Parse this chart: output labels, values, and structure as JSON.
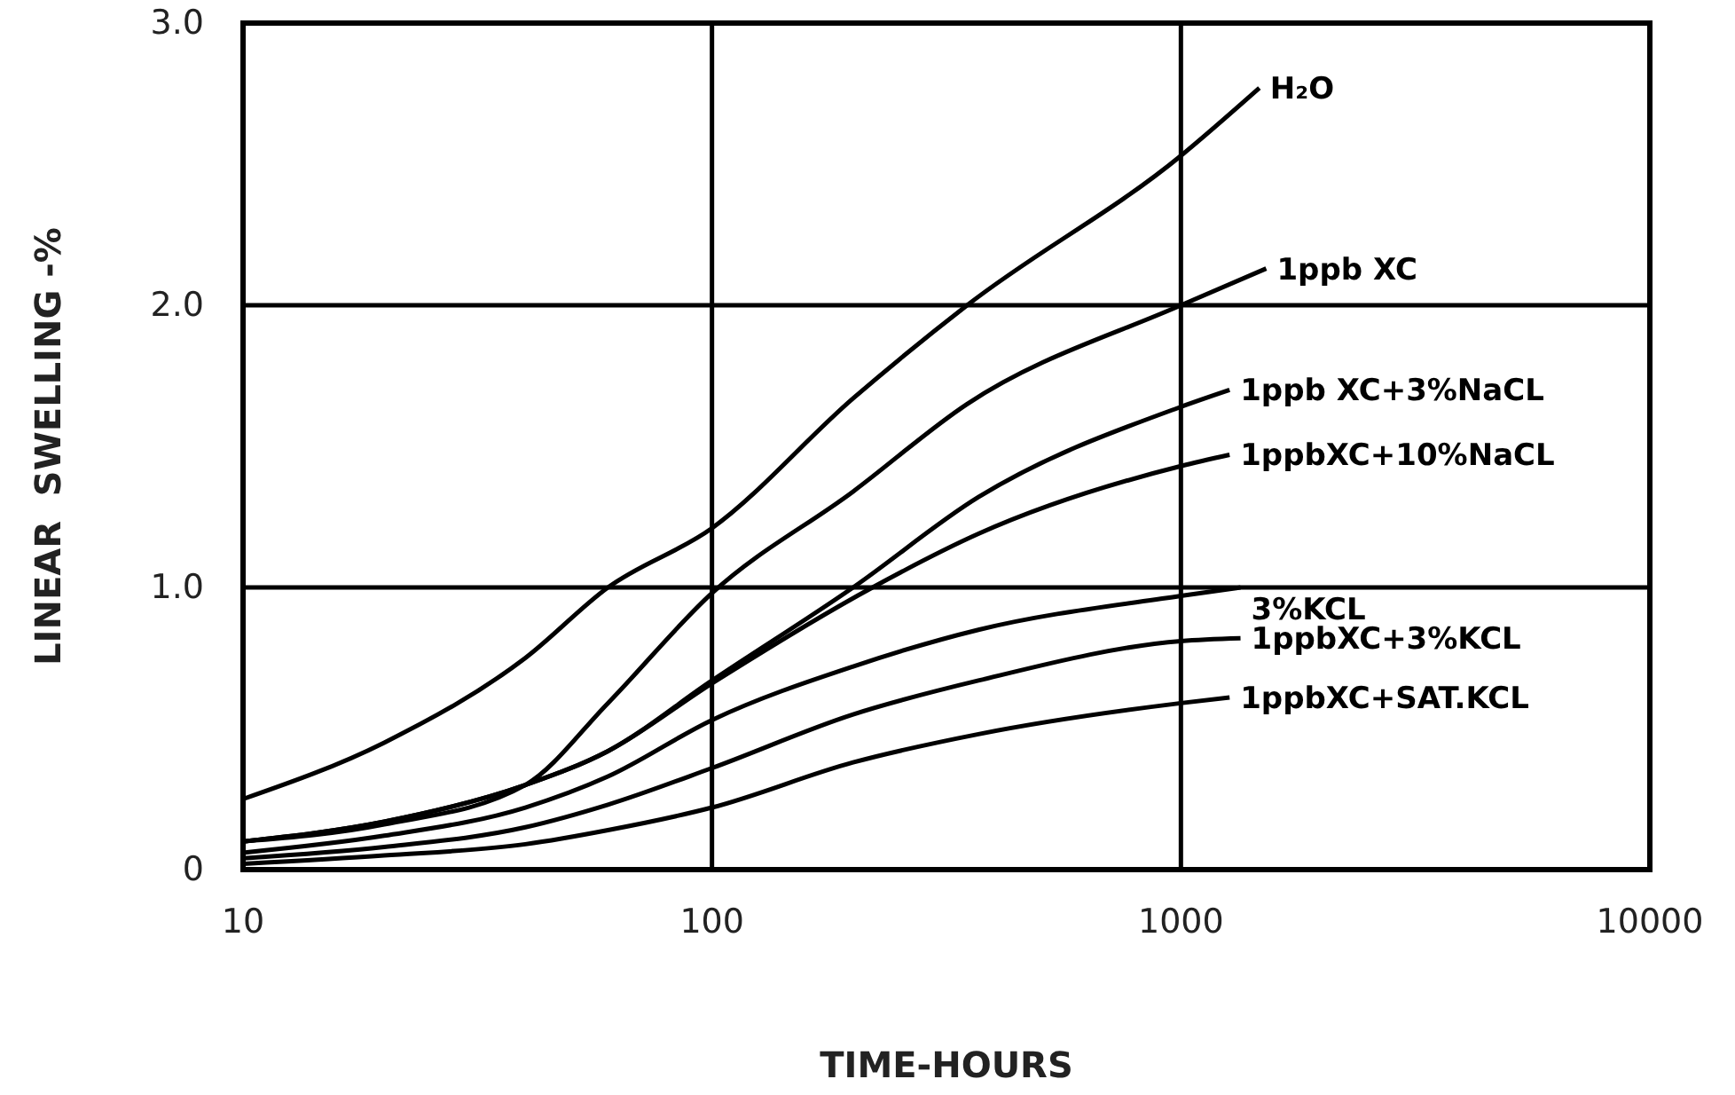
{
  "chart_data": {
    "type": "line",
    "xlabel": "TIME-HOURS",
    "ylabel": "LINEAR  SWELLING -%",
    "log": "x",
    "grid": true,
    "marker": "none",
    "line_style": "solid",
    "xlim": [
      10,
      10000
    ],
    "xticks": [
      10,
      100,
      1000,
      10000
    ],
    "ylim": [
      0,
      3
    ],
    "yticks": [
      0,
      {
        "value": 1,
        "label": "1.0"
      },
      {
        "value": 2,
        "label": "2.0"
      },
      {
        "value": 3,
        "label": "3.0"
      }
    ],
    "series": [
      {
        "name": "H₂O",
        "color": "#000000",
        "x": [
          10,
          20,
          40,
          60,
          100,
          200,
          350,
          1000,
          1470
        ],
        "values": [
          0.25,
          0.45,
          0.75,
          1.0,
          1.21,
          1.67,
          2.0,
          2.53,
          2.77
        ]
      },
      {
        "name": "1ppb XC",
        "color": "#000000",
        "x": [
          10,
          20,
          40,
          60,
          100,
          200,
          350,
          1000,
          1520
        ],
        "values": [
          0.1,
          0.16,
          0.3,
          0.59,
          0.98,
          1.34,
          1.65,
          2.0,
          2.13
        ]
      },
      {
        "name": "1ppb XC+3%NaCL",
        "color": "#000000",
        "x": [
          10,
          20,
          40,
          60,
          100,
          200,
          370,
          1000,
          1270
        ],
        "values": [
          0.1,
          0.17,
          0.3,
          0.42,
          0.67,
          1.0,
          1.32,
          1.64,
          1.7
        ]
      },
      {
        "name": "1ppbXC+10%NaCL",
        "color": "#000000",
        "x": [
          10,
          20,
          40,
          60,
          100,
          220,
          370,
          1000,
          1270
        ],
        "values": [
          0.1,
          0.17,
          0.3,
          0.42,
          0.66,
          1.0,
          1.19,
          1.43,
          1.47
        ]
      },
      {
        "name": "3%KCL",
        "color": "#000000",
        "x": [
          10,
          20,
          40,
          60,
          100,
          200,
          370,
          1000,
          1340
        ],
        "values": [
          0.06,
          0.12,
          0.22,
          0.33,
          0.53,
          0.72,
          0.85,
          0.97,
          1.0
        ]
      },
      {
        "name": "1ppbXC+3%KCL",
        "color": "#000000",
        "x": [
          10,
          20,
          40,
          60,
          100,
          200,
          370,
          1000,
          1340
        ],
        "values": [
          0.04,
          0.08,
          0.15,
          0.23,
          0.36,
          0.55,
          0.67,
          0.81,
          0.82
        ]
      },
      {
        "name": "1ppbXC+SAT.KCL",
        "color": "#000000",
        "x": [
          10,
          20,
          40,
          60,
          100,
          200,
          370,
          1000,
          1270
        ],
        "values": [
          0.02,
          0.05,
          0.09,
          0.14,
          0.22,
          0.38,
          0.48,
          0.59,
          0.61
        ]
      }
    ]
  }
}
